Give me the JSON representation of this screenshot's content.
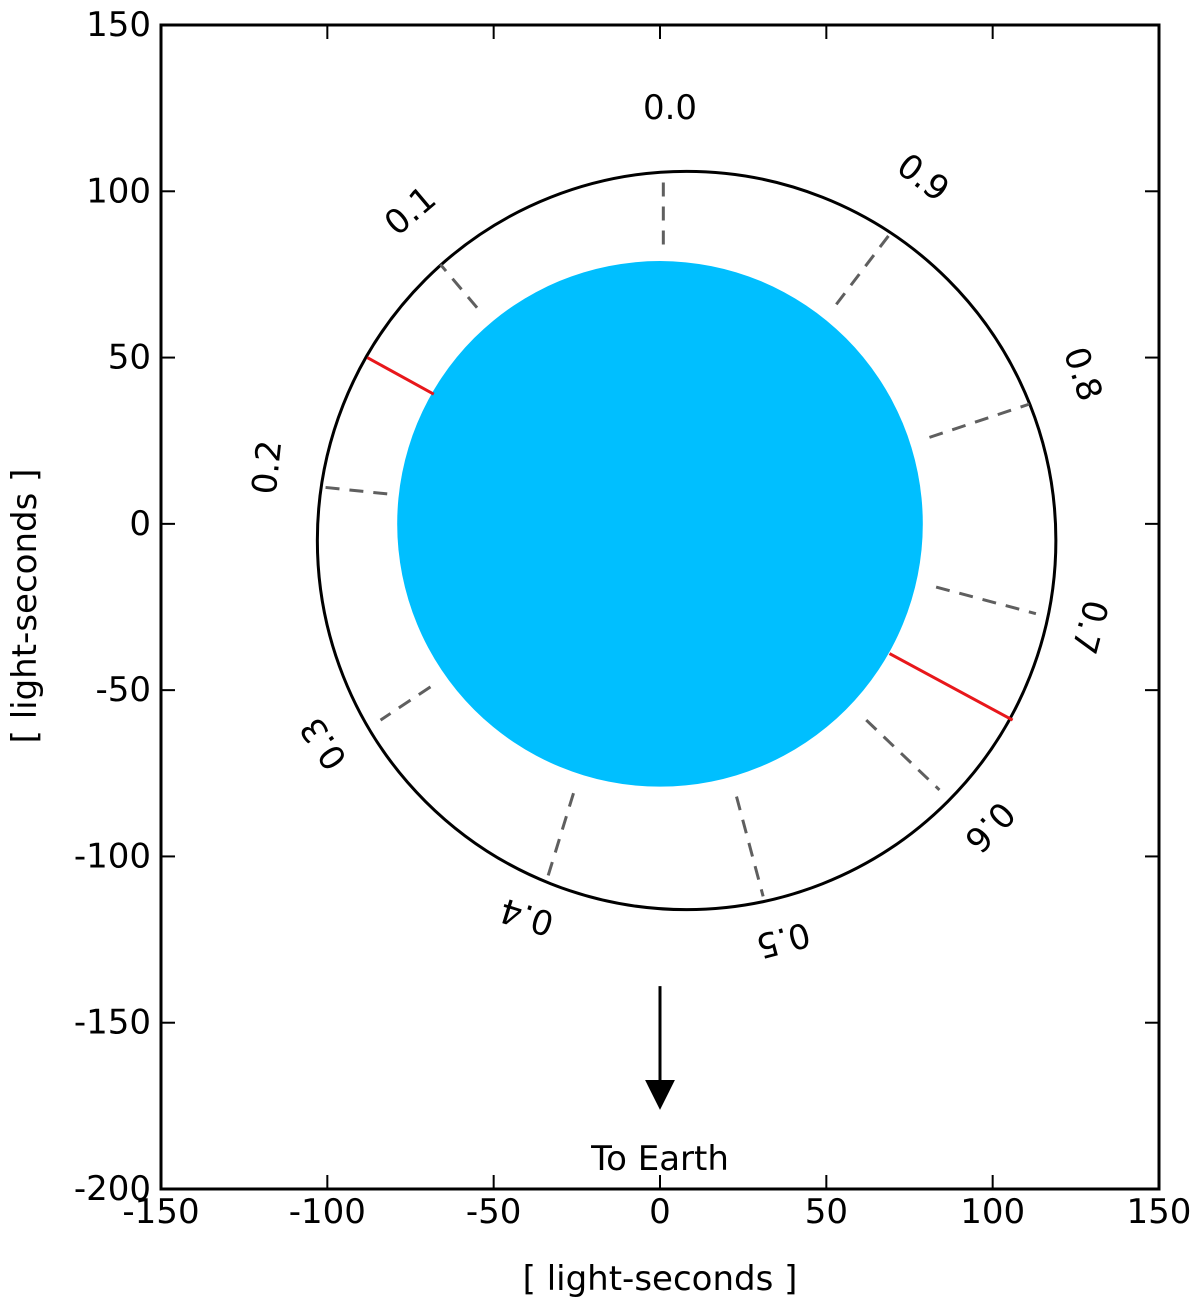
{
  "chart_data": {
    "type": "scatter",
    "title": "",
    "xlabel": "[ light-seconds ]",
    "ylabel": "[ light-seconds ]",
    "xlim": [
      -150,
      150
    ],
    "ylim": [
      -200,
      150
    ],
    "xticks": [
      -150,
      -100,
      -50,
      0,
      50,
      100,
      150
    ],
    "yticks": [
      -200,
      -150,
      -100,
      -50,
      0,
      50,
      100,
      150
    ],
    "grid": false,
    "star": {
      "center": [
        0,
        0
      ],
      "radius": 79,
      "color": "#00bfff"
    },
    "orbit": {
      "center": [
        8,
        -5
      ],
      "rx": 111,
      "ry": 111,
      "color": "#000000"
    },
    "phase_markers": [
      {
        "label": "0.0",
        "inner": [
          1,
          84
        ],
        "outer": [
          1,
          104
        ],
        "label_pos": [
          3,
          125
        ]
      },
      {
        "label": "0.1",
        "inner": [
          -55,
          65
        ],
        "outer": [
          -66,
          78
        ],
        "label_pos": [
          -75,
          94
        ]
      },
      {
        "label": "0.2",
        "inner": [
          -82,
          9
        ],
        "outer": [
          -101,
          11
        ],
        "label_pos": [
          -118,
          17
        ]
      },
      {
        "label": "0.3",
        "inner": [
          -69,
          -49
        ],
        "outer": [
          -84,
          -59
        ],
        "label_pos": [
          -101,
          -66
        ]
      },
      {
        "label": "0.4",
        "inner": [
          -26,
          -81
        ],
        "outer": [
          -34,
          -107
        ],
        "label_pos": [
          -40,
          -118
        ]
      },
      {
        "label": "0.5",
        "inner": [
          23,
          -82
        ],
        "outer": [
          31,
          -112
        ],
        "label_pos": [
          37,
          -125
        ]
      },
      {
        "label": "0.6",
        "inner": [
          62,
          -59
        ],
        "outer": [
          84,
          -80
        ],
        "label_pos": [
          99,
          -91
        ]
      },
      {
        "label": "0.7",
        "inner": [
          83,
          -19
        ],
        "outer": [
          113,
          -27
        ],
        "label_pos": [
          129,
          -31
        ]
      },
      {
        "label": "0.8",
        "inner": [
          81,
          26
        ],
        "outer": [
          111,
          36
        ],
        "label_pos": [
          127,
          45
        ]
      },
      {
        "label": "0.9",
        "inner": [
          53,
          66
        ],
        "outer": [
          69,
          87
        ],
        "label_pos": [
          79,
          104
        ]
      }
    ],
    "red_lines": [
      {
        "from": [
          -68,
          39
        ],
        "to": [
          -88,
          50
        ]
      },
      {
        "from": [
          69,
          -39
        ],
        "to": [
          106,
          -59
        ]
      }
    ],
    "arrow": {
      "from": [
        0,
        -139
      ],
      "to": [
        0,
        -178
      ],
      "label": "To Earth",
      "label_pos": [
        0,
        -191
      ]
    }
  }
}
